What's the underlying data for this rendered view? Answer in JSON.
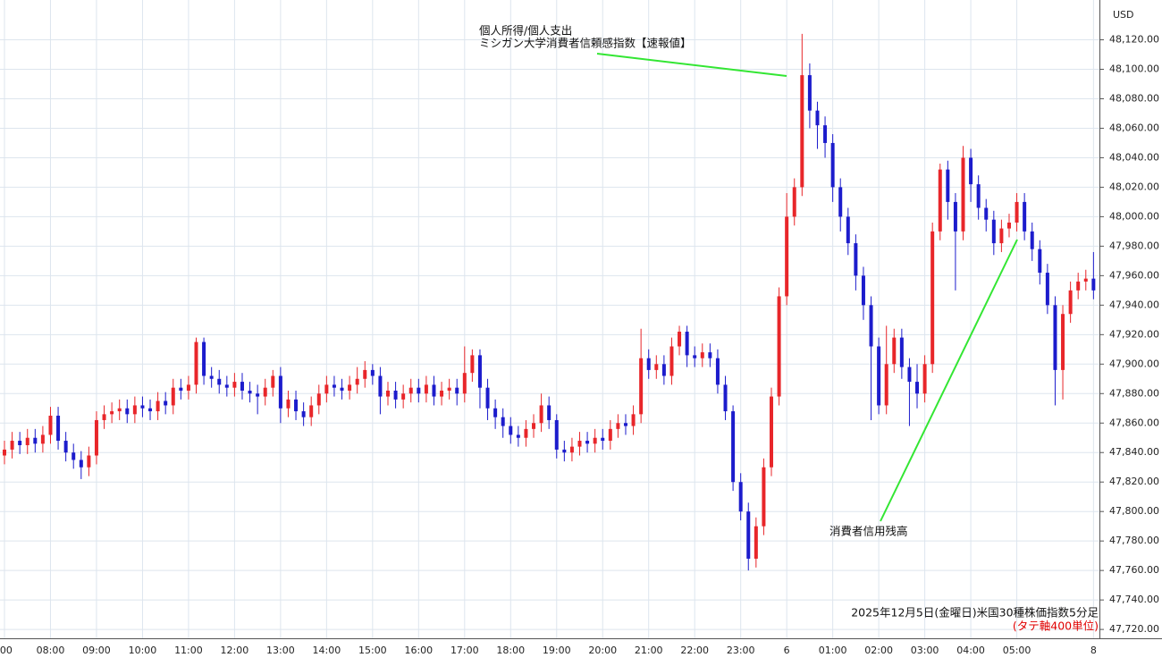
{
  "chart_data": {
    "type": "candlestick",
    "currency": "USD",
    "annotations": [
      "個人所得/個人支出",
      "ミシガン大学消費者信頼感指数【速報値】",
      "消費者信用残高"
    ],
    "caption": "2025年12月5日(金曜日)米国30種株価指数5分足",
    "caption_note": "(タテ軸400単位)",
    "up_color": "#e8262a",
    "down_color": "#1c1ccc",
    "grid": true,
    "ylim": [
      47714,
      48147
    ],
    "yticks": [
      {
        "value": 47720,
        "label": "47,720.00"
      },
      {
        "value": 47740,
        "label": "47,740.00"
      },
      {
        "value": 47760,
        "label": "47,760.00"
      },
      {
        "value": 47780,
        "label": "47,780.00"
      },
      {
        "value": 47800,
        "label": "47,800.00"
      },
      {
        "value": 47820,
        "label": "47,820.00"
      },
      {
        "value": 47840,
        "label": "47,840.00"
      },
      {
        "value": 47860,
        "label": "47,860.00"
      },
      {
        "value": 47880,
        "label": "47,880.00"
      },
      {
        "value": 47900,
        "label": "47,900.00"
      },
      {
        "value": 47920,
        "label": "47,920.00"
      },
      {
        "value": 47940,
        "label": "47,940.00"
      },
      {
        "value": 47960,
        "label": "47,960.00"
      },
      {
        "value": 47980,
        "label": "47,980.00"
      },
      {
        "value": 48000,
        "label": "48,000.00"
      },
      {
        "value": 48020,
        "label": "48,020.00"
      },
      {
        "value": 48040,
        "label": "48,040.00"
      },
      {
        "value": 48060,
        "label": "48,060.00"
      },
      {
        "value": 48080,
        "label": "48,080.00"
      },
      {
        "value": 48100,
        "label": "48,100.00"
      },
      {
        "value": 48120,
        "label": "48,120.00"
      }
    ],
    "categories": [
      ":00",
      null,
      null,
      null,
      null,
      null,
      "08:00",
      null,
      null,
      null,
      null,
      null,
      "09:00",
      null,
      null,
      null,
      null,
      null,
      "10:00",
      null,
      null,
      null,
      null,
      null,
      "11:00",
      null,
      null,
      null,
      null,
      null,
      "12:00",
      null,
      null,
      null,
      null,
      null,
      "13:00",
      null,
      null,
      null,
      null,
      null,
      "14:00",
      null,
      null,
      null,
      null,
      null,
      "15:00",
      null,
      null,
      null,
      null,
      null,
      "16:00",
      null,
      null,
      null,
      null,
      null,
      "17:00",
      null,
      null,
      null,
      null,
      null,
      "18:00",
      null,
      null,
      null,
      null,
      null,
      "19:00",
      null,
      null,
      null,
      null,
      null,
      "20:00",
      null,
      null,
      null,
      null,
      null,
      "21:00",
      null,
      null,
      null,
      null,
      null,
      "22:00",
      null,
      null,
      null,
      null,
      null,
      "23:00",
      null,
      null,
      null,
      null,
      null,
      "6",
      null,
      null,
      null,
      null,
      null,
      "01:00",
      null,
      null,
      null,
      null,
      null,
      "02:00",
      null,
      null,
      null,
      null,
      null,
      "03:00",
      null,
      null,
      null,
      null,
      null,
      "04:00",
      null,
      null,
      null,
      null,
      null,
      "05:00",
      null,
      null,
      null,
      null,
      null,
      null,
      null,
      null,
      null,
      "8"
    ],
    "open": [
      47838,
      47842,
      47848,
      47845,
      47850,
      47846,
      47852,
      47865,
      47848,
      47840,
      47835,
      47830,
      47838,
      47862,
      47866,
      47868,
      47870,
      47866,
      47872,
      47870,
      47868,
      47875,
      47872,
      47884,
      47882,
      47886,
      47915,
      47892,
      47890,
      47886,
      47884,
      47888,
      47882,
      47880,
      47878,
      47884,
      47892,
      47870,
      47876,
      47868,
      47864,
      47872,
      47880,
      47886,
      47884,
      47882,
      47886,
      47890,
      47896,
      47892,
      47878,
      47882,
      47876,
      47880,
      47884,
      47880,
      47886,
      47878,
      47882,
      47884,
      47880,
      47894,
      47906,
      47884,
      47870,
      47864,
      47858,
      47852,
      47850,
      47856,
      47860,
      47872,
      47862,
      47842,
      47840,
      47844,
      47848,
      47846,
      47850,
      47848,
      47856,
      47860,
      47858,
      47866,
      47904,
      47896,
      47900,
      47892,
      47912,
      47922,
      47906,
      47904,
      47908,
      47904,
      47886,
      47868,
      47820,
      47800,
      47768,
      47790,
      47830,
      47878,
      47946,
      48000,
      48020,
      48096,
      48072,
      48062,
      48050,
      48020,
      48000,
      47982,
      47960,
      47940,
      47912,
      47872,
      47900,
      47918,
      47898,
      47888,
      47880,
      47900,
      47990,
      48032,
      48010,
      47990,
      48040,
      48022,
      48006,
      47998,
      47982,
      47992,
      47996,
      48010,
      47990,
      47978,
      47962,
      47940,
      47896,
      47934,
      47950,
      47956,
      47958
    ],
    "high": [
      47848,
      47854,
      47854,
      47856,
      47856,
      47858,
      47871,
      47871,
      47854,
      47846,
      47841,
      47844,
      47868,
      47872,
      47874,
      47876,
      47876,
      47878,
      47878,
      47876,
      47881,
      47881,
      47890,
      47890,
      47892,
      47918,
      47918,
      47898,
      47896,
      47892,
      47894,
      47894,
      47888,
      47886,
      47890,
      47896,
      47898,
      47882,
      47882,
      47874,
      47878,
      47886,
      47892,
      47892,
      47890,
      47892,
      47898,
      47902,
      47900,
      47898,
      47888,
      47888,
      47886,
      47890,
      47890,
      47892,
      47892,
      47888,
      47890,
      47890,
      47912,
      47910,
      47910,
      47890,
      47876,
      47870,
      47864,
      47858,
      47862,
      47866,
      47880,
      47878,
      47866,
      47848,
      47850,
      47854,
      47854,
      47856,
      47856,
      47862,
      47866,
      47866,
      47872,
      47924,
      47910,
      47906,
      47906,
      47918,
      47926,
      47926,
      47912,
      47914,
      47914,
      47910,
      47892,
      47872,
      47826,
      47806,
      47796,
      47836,
      47884,
      47952,
      48016,
      48026,
      48124,
      48104,
      48078,
      48068,
      48056,
      48026,
      48006,
      47988,
      47966,
      47946,
      47918,
      47926,
      47924,
      47924,
      47904,
      47900,
      47906,
      47996,
      48036,
      48038,
      48016,
      48048,
      48046,
      48028,
      48012,
      48004,
      47998,
      48002,
      48016,
      48016,
      47996,
      47984,
      47968,
      47946,
      47940,
      47956,
      47962,
      47964,
      47976
    ],
    "low": [
      47832,
      47836,
      47839,
      47839,
      47840,
      47840,
      47846,
      47842,
      47834,
      47829,
      47822,
      47824,
      47832,
      47856,
      47860,
      47862,
      47860,
      47860,
      47864,
      47862,
      47862,
      47866,
      47866,
      47876,
      47876,
      47880,
      47886,
      47884,
      47880,
      47878,
      47878,
      47876,
      47874,
      47866,
      47872,
      47878,
      47860,
      47864,
      47862,
      47858,
      47858,
      47866,
      47874,
      47878,
      47876,
      47876,
      47880,
      47884,
      47886,
      47866,
      47872,
      47870,
      47870,
      47874,
      47874,
      47874,
      47872,
      47872,
      47876,
      47872,
      47874,
      47888,
      47870,
      47862,
      47856,
      47850,
      47846,
      47844,
      47844,
      47850,
      47854,
      47856,
      47836,
      47834,
      47834,
      47838,
      47840,
      47840,
      47842,
      47842,
      47850,
      47852,
      47852,
      47860,
      47890,
      47890,
      47886,
      47886,
      47906,
      47898,
      47898,
      47898,
      47898,
      47880,
      47862,
      47814,
      47794,
      47760,
      47762,
      47784,
      47824,
      47872,
      47940,
      47994,
      48014,
      48060,
      48046,
      48040,
      48010,
      47990,
      47974,
      47950,
      47930,
      47862,
      47866,
      47866,
      47894,
      47890,
      47858,
      47870,
      47874,
      47894,
      47984,
      47998,
      47950,
      47984,
      48010,
      47998,
      47990,
      47974,
      47976,
      47986,
      47990,
      47984,
      47970,
      47954,
      47934,
      47872,
      47876,
      47928,
      47944,
      47950,
      47944
    ],
    "close": [
      47842,
      47848,
      47845,
      47850,
      47846,
      47852,
      47865,
      47848,
      47840,
      47835,
      47830,
      47838,
      47862,
      47866,
      47868,
      47870,
      47866,
      47872,
      47870,
      47868,
      47875,
      47872,
      47884,
      47882,
      47886,
      47915,
      47892,
      47890,
      47886,
      47884,
      47888,
      47882,
      47880,
      47878,
      47884,
      47892,
      47870,
      47876,
      47868,
      47864,
      47872,
      47880,
      47886,
      47884,
      47882,
      47886,
      47890,
      47896,
      47892,
      47878,
      47882,
      47876,
      47880,
      47884,
      47880,
      47886,
      47878,
      47882,
      47884,
      47880,
      47894,
      47906,
      47884,
      47870,
      47864,
      47858,
      47852,
      47850,
      47856,
      47860,
      47872,
      47862,
      47842,
      47840,
      47844,
      47848,
      47846,
      47850,
      47848,
      47856,
      47860,
      47858,
      47866,
      47904,
      47896,
      47900,
      47892,
      47912,
      47922,
      47906,
      47904,
      47908,
      47904,
      47886,
      47868,
      47820,
      47800,
      47768,
      47790,
      47830,
      47878,
      47946,
      48000,
      48020,
      48096,
      48072,
      48062,
      48050,
      48020,
      48000,
      47982,
      47960,
      47940,
      47912,
      47872,
      47900,
      47918,
      47898,
      47888,
      47880,
      47900,
      47990,
      48032,
      48010,
      47990,
      48040,
      48022,
      48006,
      47998,
      47982,
      47992,
      47996,
      48010,
      47990,
      47978,
      47962,
      47940,
      47896,
      47934,
      47950,
      47956,
      47958,
      47950
    ]
  }
}
